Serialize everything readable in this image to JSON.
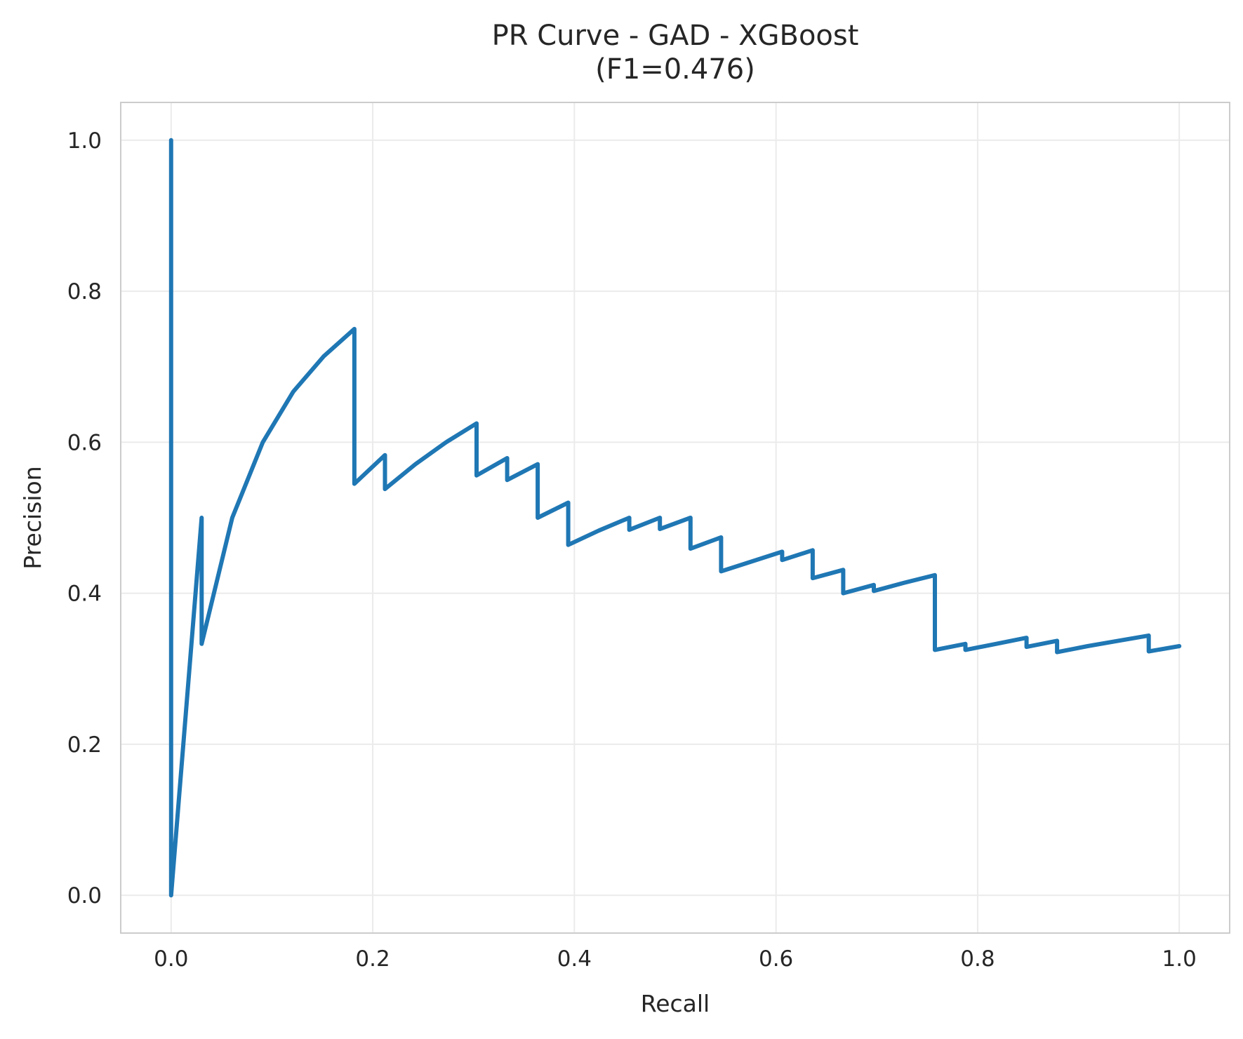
{
  "chart_data": {
    "type": "line",
    "title": "PR Curve - GAD - XGBoost",
    "subtitle": "(F1=0.476)",
    "xlabel": "Recall",
    "ylabel": "Precision",
    "xlim": [
      -0.05,
      1.05
    ],
    "ylim": [
      -0.05,
      1.05
    ],
    "grid": true,
    "x_ticks": [
      "0.0",
      "0.2",
      "0.4",
      "0.6",
      "0.8",
      "1.0"
    ],
    "y_ticks": [
      "0.0",
      "0.2",
      "0.4",
      "0.6",
      "0.8",
      "1.0"
    ],
    "line_color": "#1f77b4",
    "series": [
      {
        "x": [
          0.0,
          0.0,
          0.0303,
          0.0303,
          0.0606,
          0.0909,
          0.1212,
          0.1515,
          0.1818,
          0.1818,
          0.2121,
          0.2121,
          0.2424,
          0.2727,
          0.303,
          0.303,
          0.3333,
          0.3333,
          0.3636,
          0.3636,
          0.3939,
          0.3939,
          0.4242,
          0.4545,
          0.4545,
          0.4848,
          0.4848,
          0.5152,
          0.5152,
          0.5455,
          0.5455,
          0.5758,
          0.6061,
          0.6061,
          0.6364,
          0.6364,
          0.6667,
          0.6667,
          0.697,
          0.697,
          0.7273,
          0.7576,
          0.7576,
          0.7879,
          0.7879,
          0.8182,
          0.8485,
          0.8485,
          0.8788,
          0.8788,
          0.9091,
          0.9394,
          0.9697,
          0.9697,
          1.0
        ],
        "y": [
          1.0,
          0.0,
          0.5,
          0.333,
          0.5,
          0.6,
          0.667,
          0.714,
          0.75,
          0.545,
          0.583,
          0.538,
          0.571,
          0.6,
          0.625,
          0.556,
          0.579,
          0.55,
          0.571,
          0.5,
          0.52,
          0.464,
          0.483,
          0.5,
          0.484,
          0.5,
          0.485,
          0.5,
          0.459,
          0.474,
          0.429,
          0.442,
          0.455,
          0.444,
          0.457,
          0.42,
          0.431,
          0.4,
          0.411,
          0.403,
          0.414,
          0.424,
          0.325,
          0.333,
          0.325,
          0.333,
          0.341,
          0.329,
          0.337,
          0.322,
          0.33,
          0.337,
          0.344,
          0.323,
          0.33
        ]
      }
    ]
  }
}
